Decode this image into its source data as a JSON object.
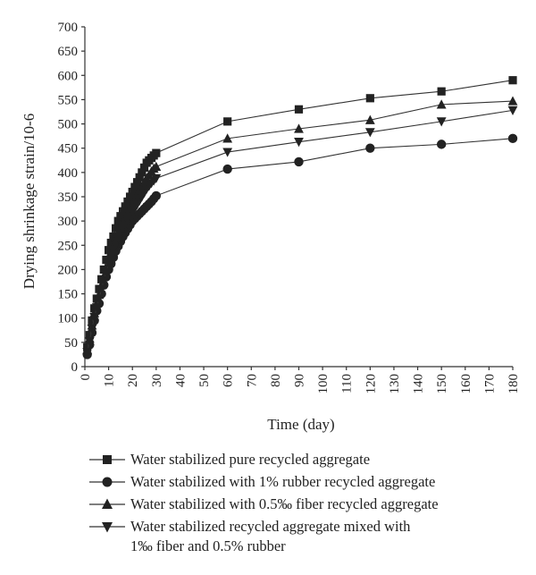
{
  "chart_data": {
    "type": "line",
    "xlabel": "Time (day)",
    "ylabel": "Drying shrinkage strain/10-6",
    "xlim": [
      0,
      180
    ],
    "ylim": [
      0,
      700
    ],
    "xticks": [
      0,
      10,
      20,
      30,
      40,
      50,
      60,
      70,
      80,
      90,
      100,
      110,
      120,
      130,
      140,
      150,
      160,
      170,
      180
    ],
    "yticks": [
      0,
      50,
      100,
      150,
      200,
      250,
      300,
      350,
      400,
      450,
      500,
      550,
      600,
      650,
      700
    ],
    "grid": false,
    "legend_position": "bottom",
    "series": [
      {
        "name": "Water stabilized pure recycled aggregate",
        "marker": "square",
        "x": [
          1,
          2,
          3,
          4,
          5,
          6,
          7,
          8,
          9,
          10,
          11,
          12,
          13,
          14,
          15,
          16,
          17,
          18,
          19,
          20,
          21,
          22,
          23,
          24,
          25,
          26,
          27,
          28,
          29,
          30,
          60,
          90,
          120,
          150,
          180
        ],
        "y": [
          40,
          65,
          95,
          120,
          140,
          160,
          180,
          200,
          220,
          240,
          255,
          268,
          285,
          300,
          310,
          320,
          330,
          340,
          350,
          360,
          370,
          380,
          390,
          400,
          410,
          420,
          425,
          430,
          435,
          440,
          505,
          530,
          553,
          567,
          590
        ]
      },
      {
        "name": "Water stabilized with 1% rubber recycled aggregate",
        "marker": "circle",
        "x": [
          1,
          2,
          3,
          4,
          5,
          6,
          7,
          8,
          9,
          10,
          11,
          12,
          13,
          14,
          15,
          16,
          17,
          18,
          19,
          20,
          21,
          22,
          23,
          24,
          25,
          26,
          27,
          28,
          29,
          30,
          60,
          90,
          120,
          150,
          180
        ],
        "y": [
          25,
          45,
          70,
          95,
          115,
          130,
          150,
          168,
          185,
          200,
          212,
          225,
          238,
          248,
          258,
          268,
          276,
          284,
          292,
          300,
          305,
          310,
          315,
          320,
          325,
          330,
          335,
          340,
          346,
          352,
          407,
          422,
          450,
          458,
          470
        ]
      },
      {
        "name": "Water stabilized with 0.5‰ fiber recycled aggregate",
        "marker": "triangle-up",
        "x": [
          1,
          2,
          3,
          4,
          5,
          6,
          7,
          8,
          9,
          10,
          11,
          12,
          13,
          14,
          15,
          16,
          17,
          18,
          19,
          20,
          21,
          22,
          23,
          24,
          25,
          26,
          27,
          28,
          29,
          30,
          60,
          90,
          120,
          150,
          180
        ],
        "y": [
          35,
          58,
          85,
          110,
          130,
          148,
          168,
          186,
          203,
          220,
          235,
          248,
          262,
          275,
          286,
          296,
          306,
          316,
          326,
          335,
          345,
          355,
          364,
          372,
          380,
          388,
          395,
          402,
          408,
          412,
          470,
          490,
          508,
          540,
          547
        ]
      },
      {
        "name": "Water stabilized recycled aggregate mixed with\n1‰ fiber and 0.5% rubber",
        "marker": "triangle-down",
        "x": [
          1,
          2,
          3,
          4,
          5,
          6,
          7,
          8,
          9,
          10,
          11,
          12,
          13,
          14,
          15,
          16,
          17,
          18,
          19,
          20,
          21,
          22,
          23,
          24,
          25,
          26,
          27,
          28,
          29,
          30,
          60,
          90,
          120,
          150,
          180
        ],
        "y": [
          30,
          52,
          78,
          102,
          122,
          140,
          160,
          178,
          195,
          212,
          226,
          240,
          252,
          264,
          275,
          284,
          293,
          302,
          310,
          318,
          326,
          334,
          342,
          350,
          358,
          366,
          372,
          378,
          383,
          388,
          442,
          463,
          483,
          505,
          528
        ]
      }
    ]
  }
}
